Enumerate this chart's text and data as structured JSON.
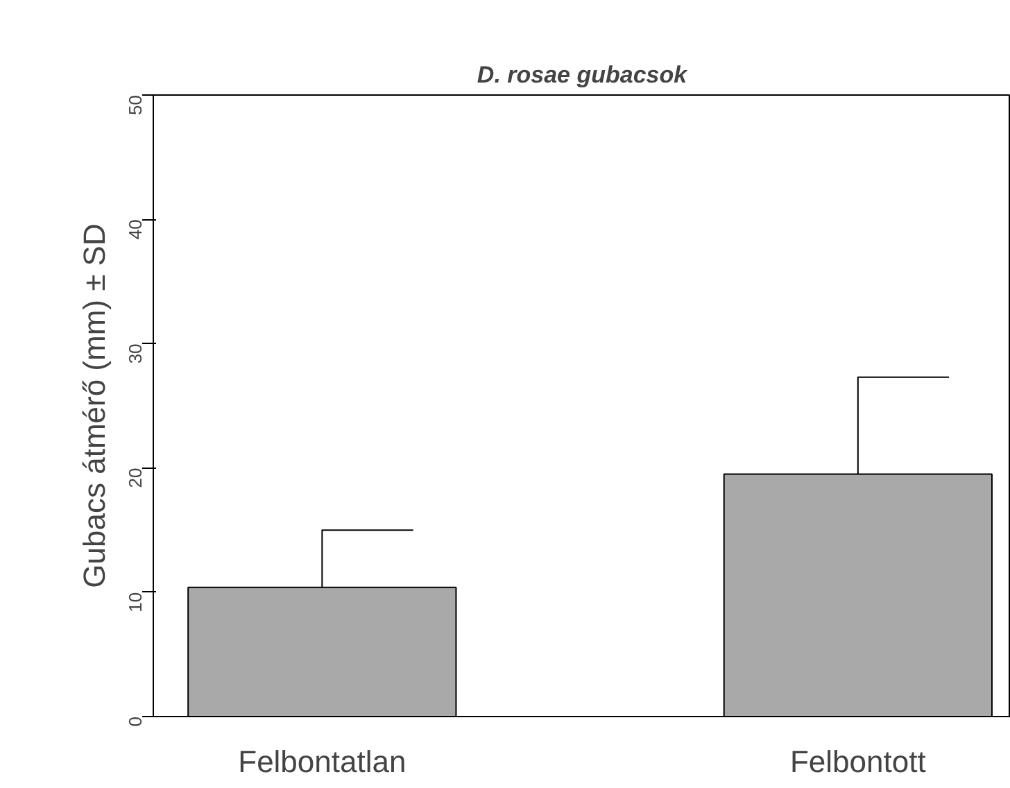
{
  "chart_data": {
    "type": "bar",
    "title": "D. rosae gubacsok",
    "ylabel": "Gubacs átmérő (mm) ± SD",
    "categories": [
      "Felbontatlan",
      "Felbontott"
    ],
    "values": [
      10.4,
      19.5
    ],
    "errors": [
      [
        10.4,
        15.0
      ],
      [
        19.5,
        27.3
      ]
    ],
    "color": "#a9a9a9",
    "ylim": [
      0,
      50
    ],
    "yticks": [
      0,
      10,
      20,
      30,
      40,
      50
    ],
    "grid": false
  }
}
